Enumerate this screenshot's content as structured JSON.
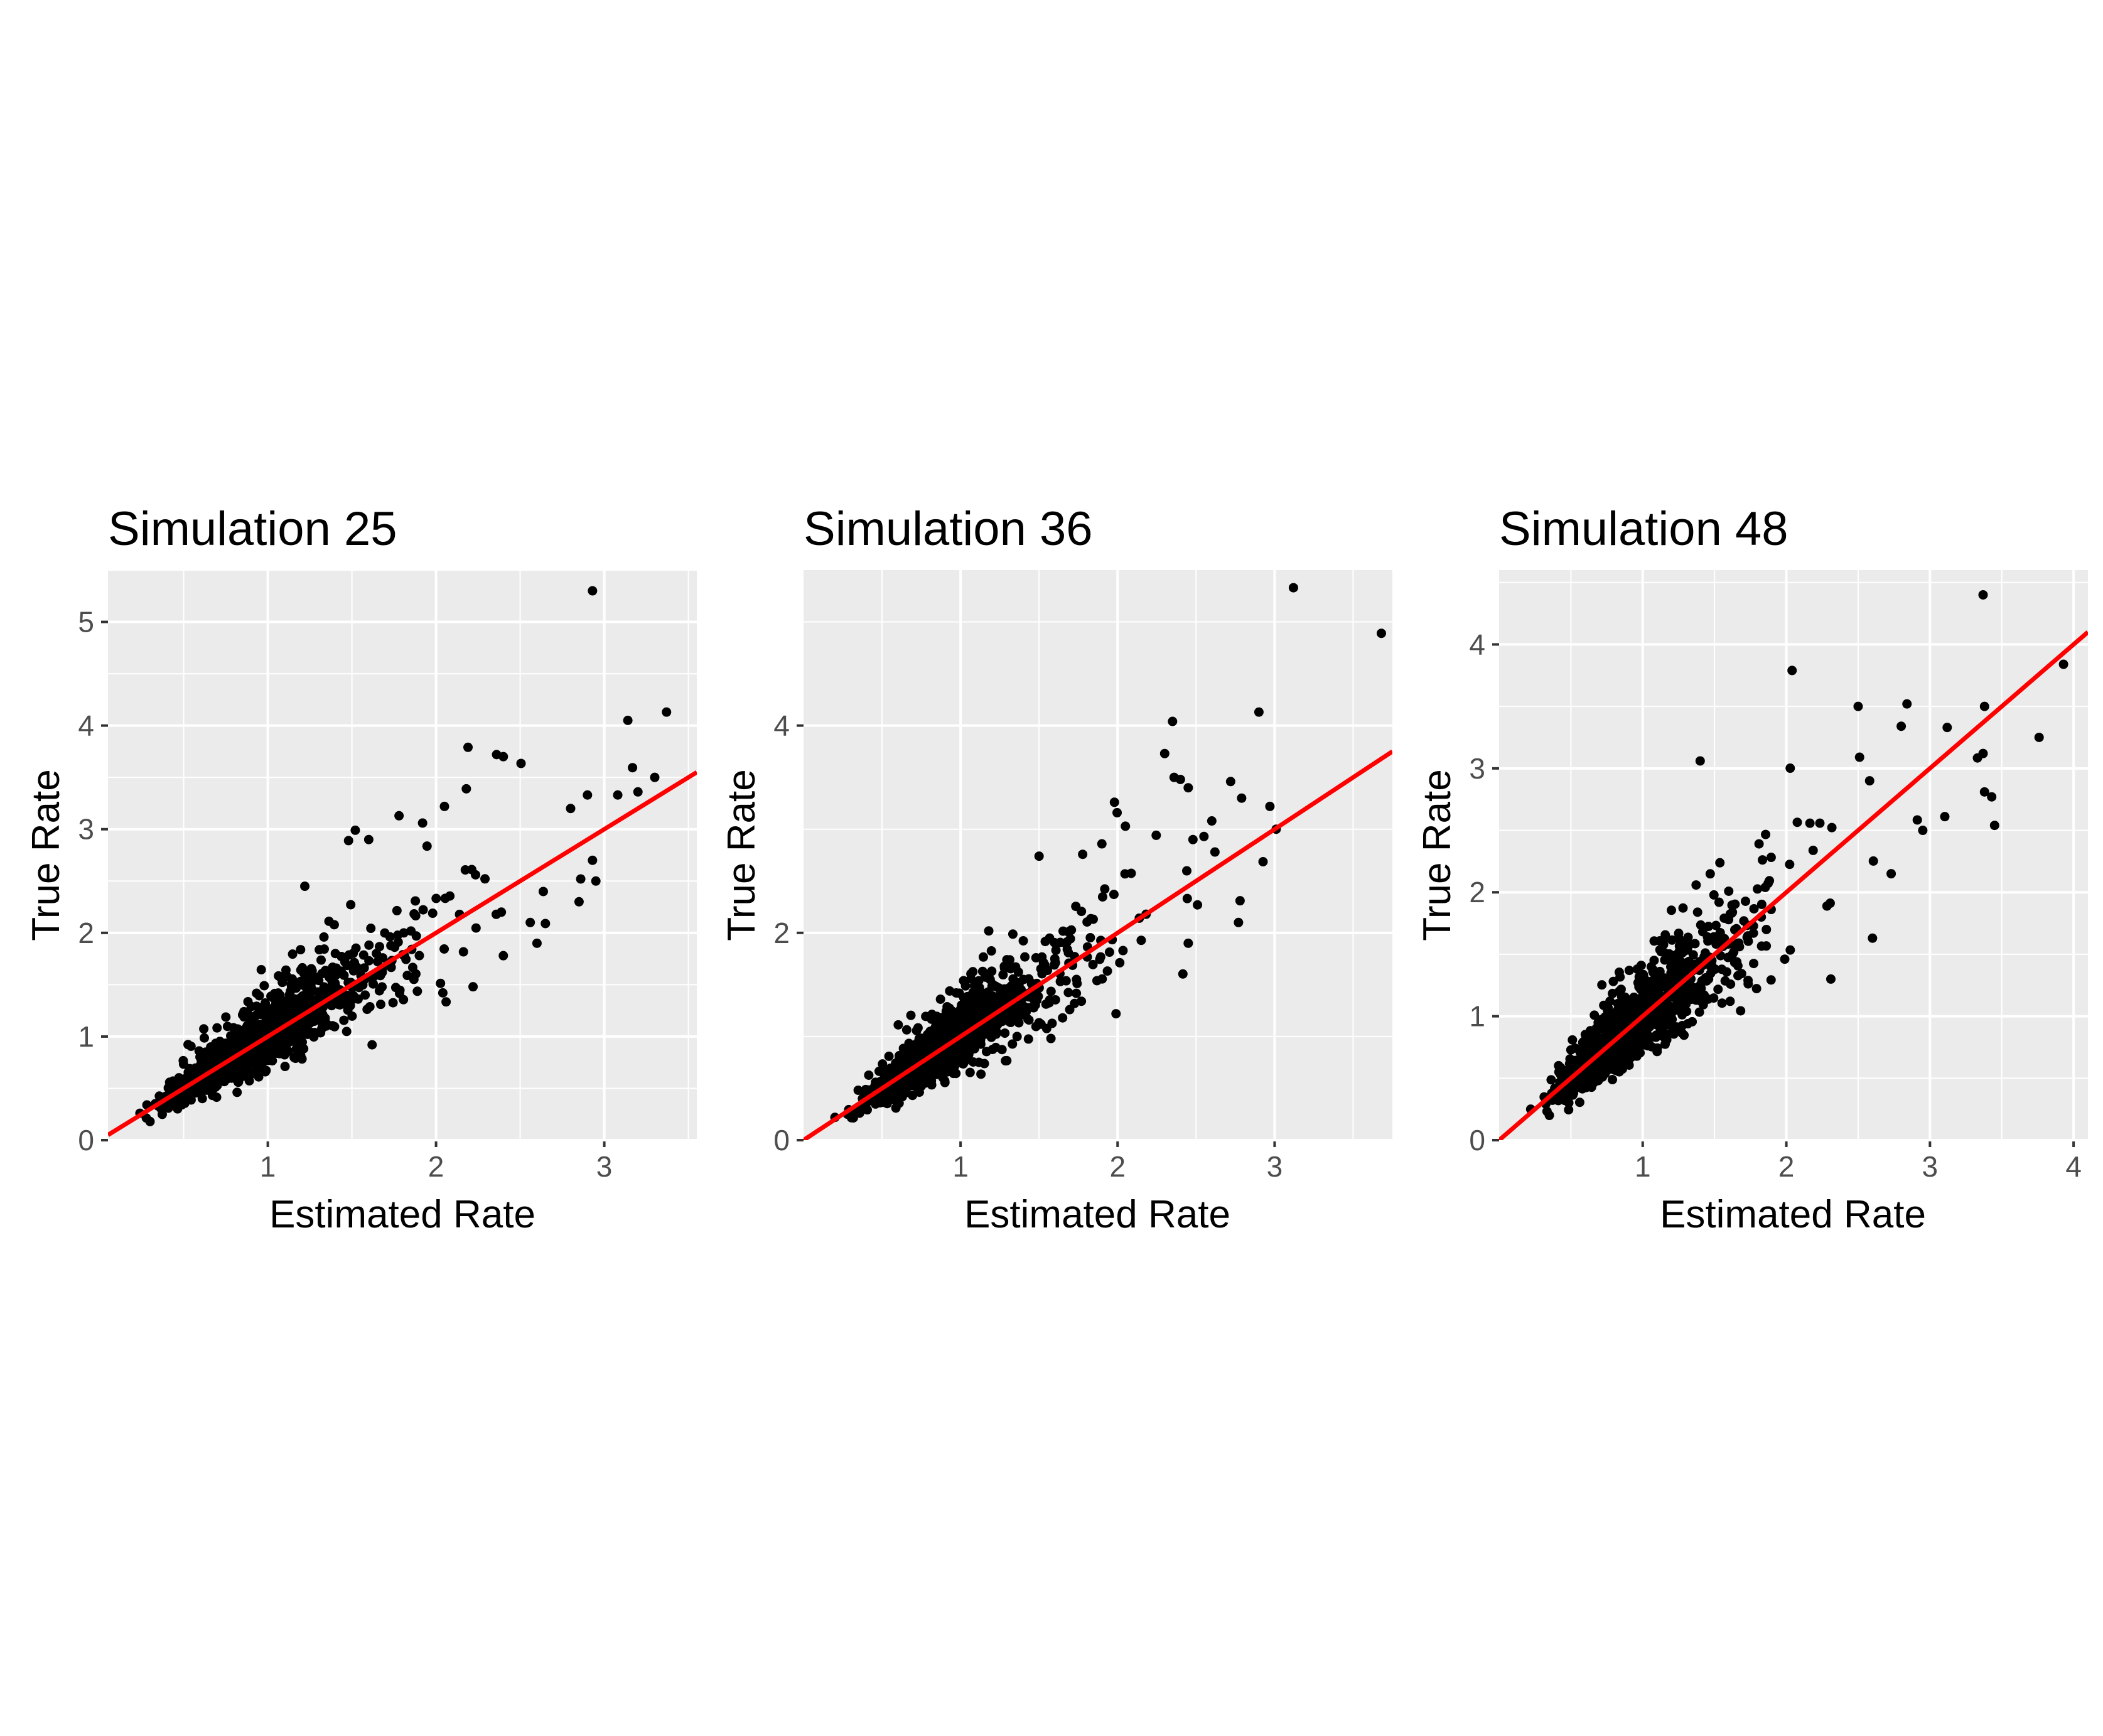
{
  "chart_data": [
    {
      "type": "scatter",
      "title": "Simulation  25",
      "xlabel": "Estimated Rate",
      "ylabel": "True Rate",
      "xlim": [
        0.05,
        3.55
      ],
      "ylim": [
        0,
        5.5
      ],
      "xticks": [
        1,
        2,
        3
      ],
      "yticks": [
        0,
        1,
        2,
        3,
        4,
        5
      ],
      "grid": true,
      "background_color": "#ebebeb",
      "point_color": "#000000",
      "line_color": "#ff0000",
      "reference_line": {
        "intercept": 0,
        "slope": 1
      },
      "generated": {
        "n": 1000,
        "seed": 25
      },
      "outliers": [
        {
          "x": 2.93,
          "y": 5.3
        },
        {
          "x": 3.37,
          "y": 4.13
        },
        {
          "x": 3.14,
          "y": 4.05
        },
        {
          "x": 3.3,
          "y": 3.5
        },
        {
          "x": 3.2,
          "y": 3.36
        },
        {
          "x": 3.08,
          "y": 3.33
        },
        {
          "x": 2.9,
          "y": 3.33
        },
        {
          "x": 2.8,
          "y": 3.2
        },
        {
          "x": 2.19,
          "y": 3.79
        },
        {
          "x": 2.36,
          "y": 3.72
        },
        {
          "x": 2.4,
          "y": 3.7
        },
        {
          "x": 2.93,
          "y": 2.7
        },
        {
          "x": 2.95,
          "y": 2.5
        },
        {
          "x": 2.86,
          "y": 2.52
        },
        {
          "x": 2.85,
          "y": 2.3
        },
        {
          "x": 2.56,
          "y": 2.1
        },
        {
          "x": 2.65,
          "y": 2.09
        },
        {
          "x": 2.6,
          "y": 1.9
        },
        {
          "x": 2.4,
          "y": 1.78
        },
        {
          "x": 2.22,
          "y": 1.48
        },
        {
          "x": 1.52,
          "y": 2.99
        },
        {
          "x": 1.48,
          "y": 2.89
        },
        {
          "x": 1.6,
          "y": 2.9
        },
        {
          "x": 1.78,
          "y": 3.13
        },
        {
          "x": 1.92,
          "y": 3.06
        },
        {
          "x": 2.05,
          "y": 3.22
        },
        {
          "x": 2.18,
          "y": 3.39
        },
        {
          "x": 1.22,
          "y": 2.45
        },
        {
          "x": 1.62,
          "y": 0.92
        },
        {
          "x": 0.24,
          "y": 0.26
        },
        {
          "x": 0.3,
          "y": 0.18
        }
      ]
    },
    {
      "type": "scatter",
      "title": "Simulation  36",
      "xlabel": "Estimated Rate",
      "ylabel": "True Rate",
      "xlim": [
        0.0,
        3.75
      ],
      "ylim": [
        0,
        5.5
      ],
      "xticks": [
        1,
        2,
        3
      ],
      "yticks": [
        0,
        2,
        4
      ],
      "grid": true,
      "background_color": "#ebebeb",
      "point_color": "#000000",
      "line_color": "#ff0000",
      "reference_line": {
        "intercept": 0,
        "slope": 1
      },
      "generated": {
        "n": 1000,
        "seed": 36
      },
      "outliers": [
        {
          "x": 3.12,
          "y": 5.33
        },
        {
          "x": 3.68,
          "y": 4.89
        },
        {
          "x": 2.9,
          "y": 4.13
        },
        {
          "x": 2.35,
          "y": 4.04
        },
        {
          "x": 2.3,
          "y": 3.73
        },
        {
          "x": 2.36,
          "y": 3.5
        },
        {
          "x": 2.4,
          "y": 3.48
        },
        {
          "x": 2.45,
          "y": 3.4
        },
        {
          "x": 2.72,
          "y": 3.46
        },
        {
          "x": 2.79,
          "y": 3.3
        },
        {
          "x": 2.97,
          "y": 3.22
        },
        {
          "x": 3.01,
          "y": 3.0
        },
        {
          "x": 2.6,
          "y": 3.08
        },
        {
          "x": 2.55,
          "y": 2.93
        },
        {
          "x": 2.48,
          "y": 2.9
        },
        {
          "x": 2.62,
          "y": 2.78
        },
        {
          "x": 2.78,
          "y": 2.31
        },
        {
          "x": 2.77,
          "y": 2.1
        },
        {
          "x": 1.98,
          "y": 3.26
        },
        {
          "x": 1.5,
          "y": 2.74
        },
        {
          "x": 2.45,
          "y": 1.9
        },
        {
          "x": 1.99,
          "y": 1.22
        },
        {
          "x": 1.65,
          "y": 1.18
        },
        {
          "x": 1.36,
          "y": 1.0
        },
        {
          "x": 0.2,
          "y": 0.22
        },
        {
          "x": 0.28,
          "y": 0.25
        }
      ]
    },
    {
      "type": "scatter",
      "title": "Simulation  48",
      "xlabel": "Estimated Rate",
      "ylabel": "True Rate",
      "xlim": [
        0.0,
        4.1
      ],
      "ylim": [
        0,
        4.6
      ],
      "xticks": [
        1,
        2,
        3,
        4
      ],
      "yticks": [
        0,
        1,
        2,
        3,
        4
      ],
      "grid": true,
      "background_color": "#ebebeb",
      "point_color": "#000000",
      "line_color": "#ff0000",
      "reference_line": {
        "intercept": 0,
        "slope": 1
      },
      "generated": {
        "n": 1000,
        "seed": 48
      },
      "outliers": [
        {
          "x": 3.37,
          "y": 4.4
        },
        {
          "x": 3.93,
          "y": 3.84
        },
        {
          "x": 3.76,
          "y": 3.25
        },
        {
          "x": 3.38,
          "y": 3.5
        },
        {
          "x": 3.37,
          "y": 3.12
        },
        {
          "x": 3.38,
          "y": 2.81
        },
        {
          "x": 3.43,
          "y": 2.77
        },
        {
          "x": 3.45,
          "y": 2.54
        },
        {
          "x": 3.12,
          "y": 3.33
        },
        {
          "x": 2.84,
          "y": 3.52
        },
        {
          "x": 2.5,
          "y": 3.5
        },
        {
          "x": 2.8,
          "y": 3.34
        },
        {
          "x": 2.95,
          "y": 2.5
        },
        {
          "x": 2.73,
          "y": 2.15
        },
        {
          "x": 2.6,
          "y": 1.63
        },
        {
          "x": 2.04,
          "y": 3.79
        },
        {
          "x": 1.4,
          "y": 3.06
        },
        {
          "x": 2.51,
          "y": 3.09
        },
        {
          "x": 2.58,
          "y": 2.9
        },
        {
          "x": 2.31,
          "y": 1.3
        },
        {
          "x": 0.22,
          "y": 0.25
        },
        {
          "x": 0.35,
          "y": 0.2
        }
      ]
    }
  ]
}
